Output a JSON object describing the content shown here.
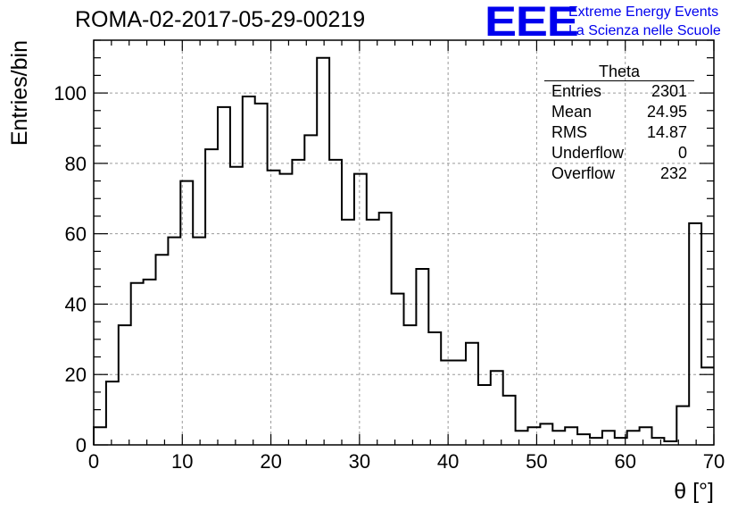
{
  "title": "ROMA-02-2017-05-29-00219",
  "logo": {
    "mark": "EEE",
    "line1": "Extreme Energy Events",
    "line2": "La Scienza nelle Scuole",
    "color": "#0000ee"
  },
  "stats": {
    "title": "Theta",
    "rows": [
      {
        "label": "Entries",
        "value": "2301"
      },
      {
        "label": "Mean",
        "value": "24.95"
      },
      {
        "label": "RMS",
        "value": "14.87"
      },
      {
        "label": "Underflow",
        "value": "0"
      },
      {
        "label": "Overflow",
        "value": "232"
      }
    ]
  },
  "chart_data": {
    "type": "bar",
    "style": "step-histogram",
    "xlabel": "θ [°]",
    "ylabel": "Entries/bin",
    "xlim": [
      0,
      70
    ],
    "ylim": [
      0,
      115
    ],
    "grid": true,
    "bin_width": 1.4,
    "x_ticks": [
      "0",
      "10",
      "20",
      "30",
      "40",
      "50",
      "60",
      "70"
    ],
    "y_ticks": [
      "0",
      "20",
      "40",
      "60",
      "80",
      "100"
    ],
    "values": [
      5,
      18,
      34,
      46,
      47,
      54,
      59,
      75,
      59,
      84,
      96,
      79,
      99,
      97,
      78,
      77,
      81,
      88,
      110,
      81,
      64,
      77,
      64,
      66,
      43,
      34,
      50,
      32,
      24,
      24,
      29,
      17,
      21,
      14,
      4,
      5,
      6,
      4,
      5,
      3,
      2,
      4,
      2,
      4,
      5,
      2,
      1,
      11,
      63,
      22
    ]
  }
}
